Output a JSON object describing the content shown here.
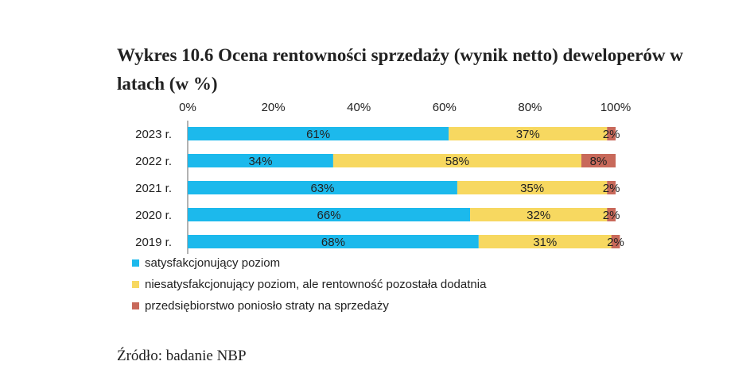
{
  "title": "Wykres 10.6 Ocena rentowności sprzedaży (wynik netto) deweloperów w latach (w %)",
  "source": "Źródło: badanie NBP",
  "chart_data": {
    "type": "bar",
    "orientation": "horizontal",
    "stacked": true,
    "categories": [
      "2023 r.",
      "2022 r.",
      "2021 r.",
      "2020 r.",
      "2019 r."
    ],
    "xlim": [
      0,
      100
    ],
    "x_ticks": [
      0,
      20,
      40,
      60,
      80,
      100
    ],
    "x_tick_labels": [
      "0%",
      "20%",
      "40%",
      "60%",
      "80%",
      "100%"
    ],
    "x_axis_position": "top",
    "grid": false,
    "legend_position": "bottom-left",
    "series": [
      {
        "name": "satysfakcjonujący poziom",
        "color": "#1cb9ec",
        "values": [
          61,
          34,
          63,
          66,
          68
        ],
        "labels": [
          "61%",
          "34%",
          "63%",
          "66%",
          "68%"
        ]
      },
      {
        "name": "niesatysfakcjonujący poziom, ale rentowność pozostała dodatnia",
        "color": "#f7d860",
        "values": [
          37,
          58,
          35,
          32,
          31
        ],
        "labels": [
          "37%",
          "58%",
          "35%",
          "32%",
          "31%"
        ]
      },
      {
        "name": "przedsiębiorstwo poniosło straty na sprzedaży",
        "color": "#c8695a",
        "values": [
          2,
          8,
          2,
          2,
          2
        ],
        "labels": [
          "2%",
          "8%",
          "2%",
          "2%",
          "2%"
        ]
      }
    ]
  }
}
